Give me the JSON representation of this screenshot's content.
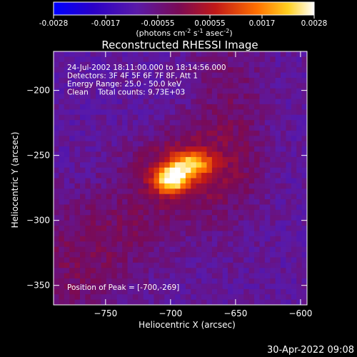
{
  "chart_data": {
    "type": "heatmap",
    "title": "Reconstructed RHESSI Image",
    "colorbar": {
      "tick_labels": [
        "-0.0028",
        "-0.0017",
        "-0.00055",
        "0.00055",
        "0.0017",
        "0.0028"
      ],
      "range": [
        -0.0028,
        0.0028
      ],
      "units_text": "(photons cm",
      "units_sup1": "-2",
      "units_mid": " s",
      "units_sup2": "-1",
      "units_mid2": " asec",
      "units_sup3": "-2",
      "units_end": ")"
    },
    "annotations": [
      "24-Jul-2002 18:11:00.000 to 18:14:56.000",
      "Detectors: 3F 4F 5F 6F 7F 8F, Att 1",
      "Energy Range: 25.0 - 50.0 keV",
      "Clean    Total counts: 9.73E+03"
    ],
    "peak_label": "Position of Peak = [-700,-269]",
    "xlabel": "Heliocentric X (arcsec)",
    "ylabel": "Heliocentric Y (arcsec)",
    "xlim": [
      -790,
      -595
    ],
    "ylim": [
      -365,
      -170
    ],
    "xticks": [
      {
        "value": -750,
        "label": "−750"
      },
      {
        "value": -700,
        "label": "−700"
      },
      {
        "value": -650,
        "label": "−650"
      },
      {
        "value": -600,
        "label": "−600"
      }
    ],
    "yticks": [
      {
        "value": -200,
        "label": "−200"
      },
      {
        "value": -250,
        "label": "−250"
      },
      {
        "value": -300,
        "label": "−300"
      },
      {
        "value": -350,
        "label": "−350"
      }
    ],
    "peak_position": [
      -700,
      -269
    ],
    "sources": [
      {
        "x": -700,
        "y": -269,
        "amp": 0.0028,
        "sx": 9,
        "sy": 7
      },
      {
        "x": -685,
        "y": -257,
        "amp": 0.0021,
        "sx": 11,
        "sy": 7
      },
      {
        "x": -693,
        "y": -262,
        "amp": 0.0011,
        "sx": 28,
        "sy": 20
      },
      {
        "x": -655,
        "y": -225,
        "amp": 0.0006,
        "sx": 22,
        "sy": 60
      },
      {
        "x": -770,
        "y": -330,
        "amp": 0.0007,
        "sx": 30,
        "sy": 35
      },
      {
        "x": -720,
        "y": -305,
        "amp": 0.0004,
        "sx": 25,
        "sy": 20
      }
    ],
    "background": -0.0009,
    "colormap": "rainbow-hot (blue-purple-red-yellow-white)"
  },
  "footer": {
    "timestamp": "30-Apr-2022 09:08"
  }
}
